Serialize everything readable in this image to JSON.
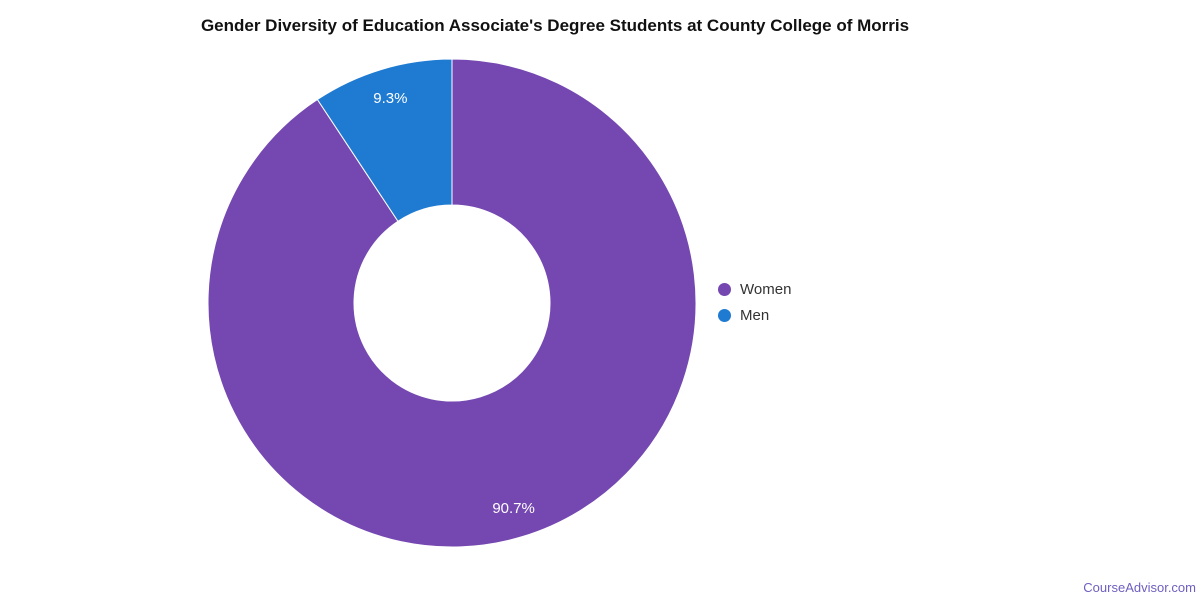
{
  "chart_data": {
    "type": "pie",
    "subtype": "donut",
    "title": "Gender Diversity of Education Associate's Degree Students at County College of Morris",
    "categories": [
      "Women",
      "Men"
    ],
    "values": [
      90.7,
      9.3
    ],
    "data_labels": [
      "90.7%",
      "9.3%"
    ],
    "colors": [
      "#7447B1",
      "#1F7BD1"
    ],
    "data_label_color": "#ffffff",
    "slice_border_color": "#ffffff",
    "start_angle_deg": 0,
    "direction": "clockwise",
    "inner_radius_ratio": 0.4,
    "legend_position": "right",
    "legend_items": [
      {
        "label": "Women",
        "color": "#7447B1"
      },
      {
        "label": "Men",
        "color": "#1F7BD1"
      }
    ]
  },
  "footer": {
    "link_text": "CourseAdvisor.com",
    "color": "#6F5FBF"
  }
}
